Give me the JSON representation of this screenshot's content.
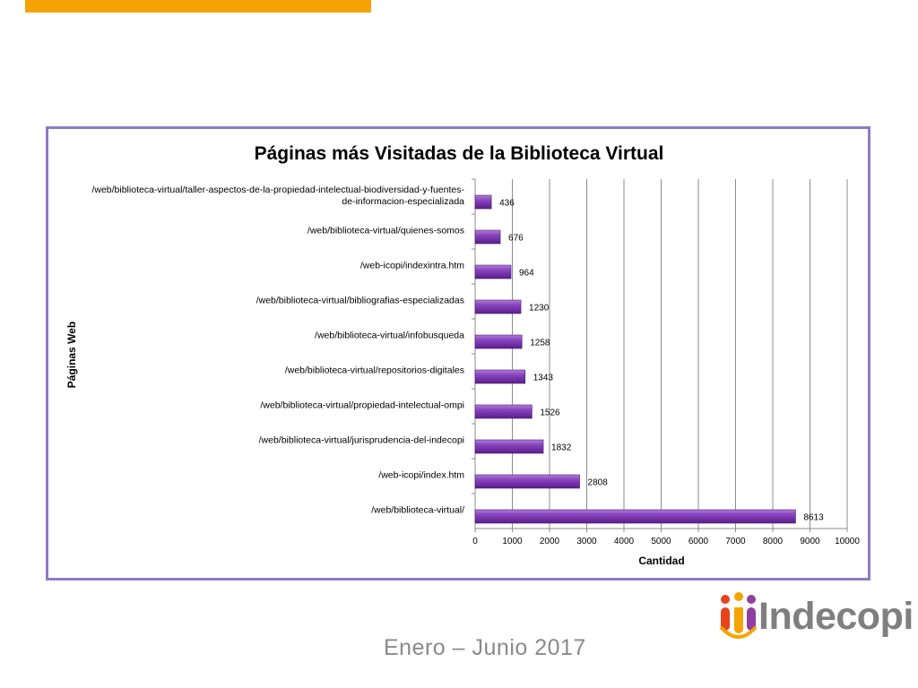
{
  "chart_data": {
    "type": "bar",
    "orientation": "horizontal",
    "title": "Páginas más Visitadas de la Biblioteca Virtual",
    "xlabel": "Cantidad",
    "ylabel": "Páginas Web",
    "xlim": [
      0,
      10000
    ],
    "xticks": [
      "0",
      "1000",
      "2000",
      "3000",
      "4000",
      "5000",
      "6000",
      "7000",
      "8000",
      "9000",
      "10000"
    ],
    "grid": true,
    "legend": "none",
    "bar_color": "#7030a0",
    "categories": [
      [
        "/web/biblioteca-virtual/taller-aspectos-de-la-propiedad-intelectual-biodiversidad-y-fuentes-",
        "de-informacion-especializada"
      ],
      [
        "/web/biblioteca-virtual/quienes-somos"
      ],
      [
        "/web-icopi/indexintra.htm"
      ],
      [
        "/web/biblioteca-virtual/bibliografias-especializadas"
      ],
      [
        "/web/biblioteca-virtual/infobusqueda"
      ],
      [
        "/web/biblioteca-virtual/repositorios-digitales"
      ],
      [
        "/web/biblioteca-virtual/propiedad-intelectual-ompi"
      ],
      [
        "/web/biblioteca-virtual/jurisprudencia-del-indecopi"
      ],
      [
        "/web-icopi/index.htm"
      ],
      [
        "/web/biblioteca-virtual/"
      ]
    ],
    "values": [
      436,
      676,
      964,
      1230,
      1258,
      1343,
      1526,
      1832,
      2808,
      8613
    ]
  },
  "footer": {
    "date_range": "Enero – Junio 2017"
  },
  "logo": {
    "text": "Indecopi",
    "colors": [
      "#e8431b",
      "#f5a300",
      "#8e3fa0"
    ]
  },
  "accent": {
    "top_bar": "#f5a300",
    "frame": "#8e7cc3"
  }
}
